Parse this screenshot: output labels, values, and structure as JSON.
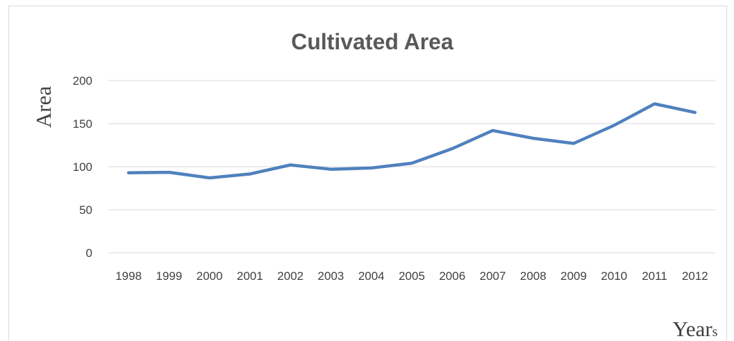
{
  "chart_data": {
    "type": "line",
    "title": "Cultivated Area",
    "ylabel": "Area",
    "xlabel": "Years",
    "ylim": [
      0,
      200
    ],
    "yticks": [
      0,
      50,
      100,
      150,
      200
    ],
    "grid": true,
    "categories": [
      "1998",
      "1999",
      "2000",
      "2001",
      "2002",
      "2003",
      "2004",
      "2005",
      "2006",
      "2007",
      "2008",
      "2009",
      "2010",
      "2011",
      "2012"
    ],
    "series": [
      {
        "color": "#4f81bd",
        "values": [
          93,
          93.5,
          87,
          91.5,
          102,
          97,
          98.5,
          104,
          121,
          142,
          133,
          127,
          148,
          173,
          163
        ]
      }
    ]
  }
}
